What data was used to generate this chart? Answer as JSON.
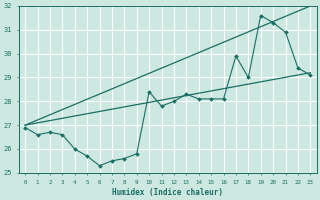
{
  "xlabel": "Humidex (Indice chaleur)",
  "ylabel": "",
  "background_color": "#cce8e0",
  "line_color": "#1a6e64",
  "x_min": -0.5,
  "x_max": 23.5,
  "y_min": 25,
  "y_max": 32,
  "x_ticks": [
    0,
    1,
    2,
    3,
    4,
    5,
    6,
    7,
    8,
    9,
    10,
    11,
    12,
    13,
    14,
    15,
    16,
    17,
    18,
    19,
    20,
    21,
    22,
    23
  ],
  "y_ticks": [
    25,
    26,
    27,
    28,
    29,
    30,
    31,
    32
  ],
  "series_actual": {
    "x": [
      0,
      1,
      2,
      3,
      4,
      5,
      6,
      7,
      8,
      9,
      10,
      11,
      12,
      13,
      14,
      15,
      16,
      17,
      18,
      19,
      20,
      21,
      22,
      23
    ],
    "y": [
      26.9,
      26.6,
      26.7,
      26.6,
      26.0,
      25.7,
      25.3,
      25.5,
      25.6,
      25.8,
      28.4,
      27.8,
      28.0,
      28.3,
      28.1,
      28.1,
      28.1,
      29.9,
      29.0,
      31.6,
      31.3,
      30.9,
      29.4,
      29.1
    ]
  },
  "series_upper": {
    "x": [
      0,
      23
    ],
    "y": [
      27.0,
      32.0
    ]
  },
  "series_lower": {
    "x": [
      0,
      23
    ],
    "y": [
      27.0,
      29.2
    ]
  }
}
